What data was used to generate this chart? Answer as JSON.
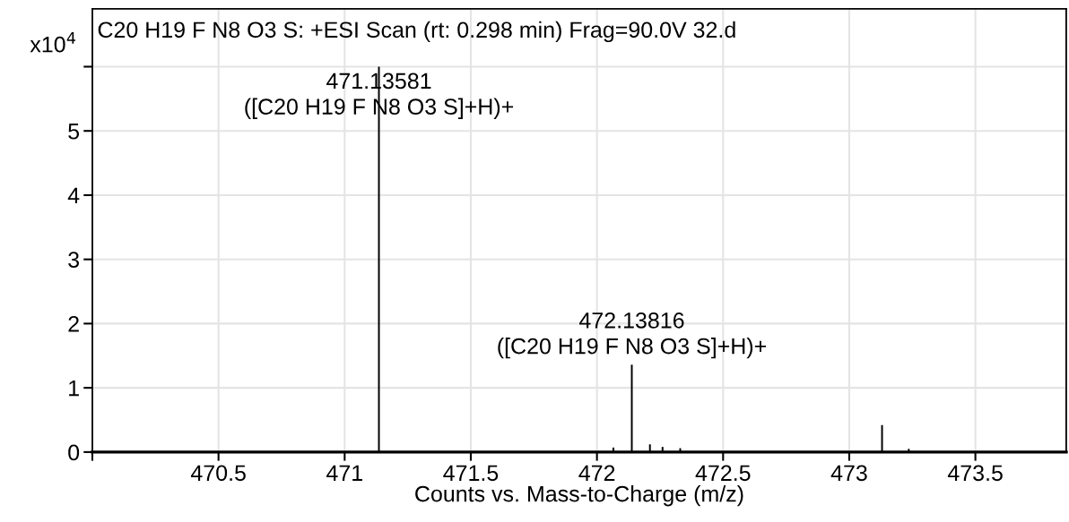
{
  "chart_data": {
    "type": "bar",
    "title": "C20 H19 F N8 O3 S: +ESI Scan (rt: 0.298 min) Frag=90.0V 32.d",
    "xlabel": "Counts vs. Mass-to-Charge (m/z)",
    "ylabel": "x10$^{4}$",
    "x": [
      471.13581,
      472.065,
      472.13816,
      472.21,
      472.26,
      472.33,
      473.13,
      473.236
    ],
    "values": [
      6.0,
      0.07,
      1.36,
      0.12,
      0.08,
      0.06,
      0.42,
      0.05
    ],
    "color": "#000000",
    "xlim": [
      470.0,
      473.86
    ],
    "ylim": [
      0,
      6.9
    ],
    "xticks": [
      {
        "value": 470,
        "label": null
      },
      470.5,
      471,
      471.5,
      472,
      472.5,
      473,
      473.5
    ],
    "yticks": [
      0,
      1,
      2,
      3,
      4,
      5,
      {
        "value": 6,
        "label": null
      }
    ],
    "grid": true,
    "annotations": [
      {
        "text": "471.13581\n([C20 H19 F N8 O3 S]+H)+",
        "x": 471.13581,
        "y": 6.0
      },
      {
        "text": "472.13816\n([C20 H19 F N8 O3 S]+H)+",
        "x": 472.13816,
        "y": 1.36
      }
    ]
  }
}
